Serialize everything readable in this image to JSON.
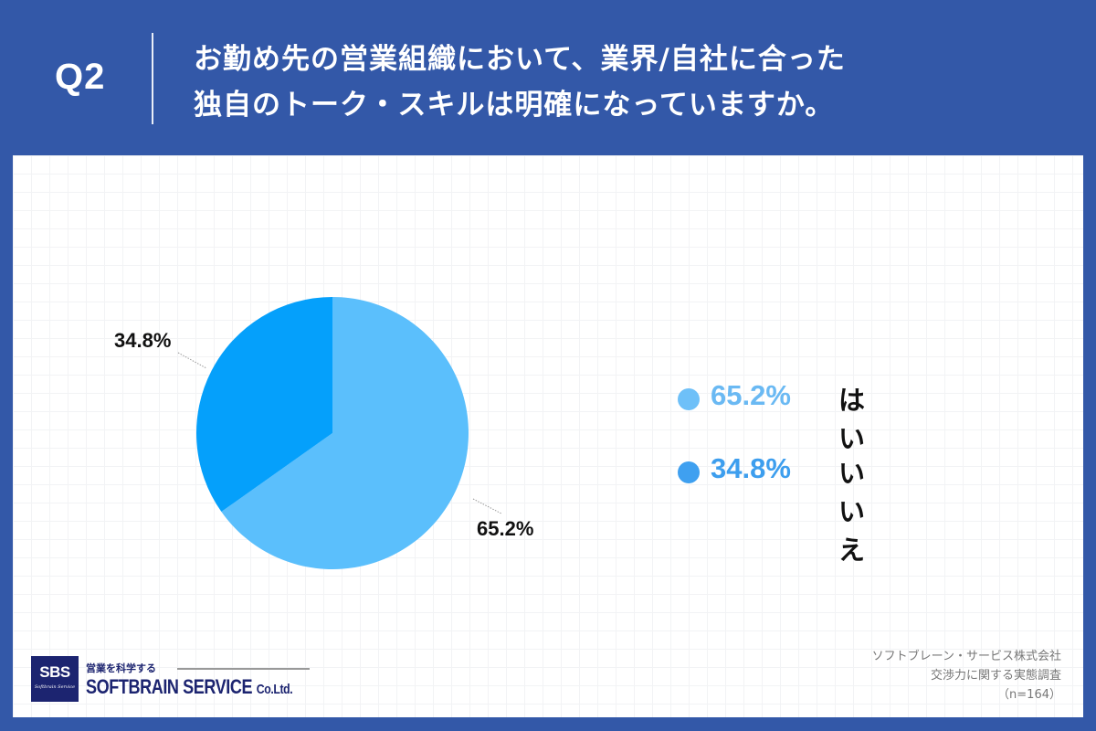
{
  "header": {
    "question_label": "Q2",
    "title_lines": [
      "お勤め先の営業組織において、業界/自社に合った",
      "独自のトーク・スキルは明確になっていますか。"
    ]
  },
  "chart_data": {
    "type": "pie",
    "title": "お勤め先の営業組織において、業界/自社に合った独自のトーク・スキルは明確になっていますか。",
    "categories": [
      "はい",
      "いいえ"
    ],
    "values": [
      65.2,
      34.8
    ],
    "unit": "%",
    "colors": [
      "#5bbffc",
      "#05a0fb"
    ],
    "data_labels": [
      "65.2%",
      "34.8%"
    ],
    "legend_position": "right",
    "sample_size": "n=164"
  },
  "pie": {
    "labels": {
      "yes": "65.2%",
      "no": "34.8%"
    }
  },
  "legend": {
    "items": [
      {
        "pct": "65.2%",
        "label": "はい",
        "dot_color": "#6ec0f8",
        "text_color": "#6ab9f3"
      },
      {
        "pct": "34.8%",
        "label": "いいえ",
        "dot_color": "#3fa0f0",
        "text_color": "#3d9eee"
      }
    ]
  },
  "logo": {
    "box_main": "SBS",
    "box_sub": "Softbrain Service",
    "tagline": "営業を科学する",
    "name": "SOFTBRAIN  SERVICE",
    "name_suffix": "Co.Ltd."
  },
  "source": {
    "lines": [
      "ソフトブレーン・サービス株式会社",
      "交渉力に関する実態調査",
      "（n=164）"
    ]
  },
  "colors": {
    "background": "#3358a8",
    "card": "#ffffff",
    "slice_yes": "#5bbffc",
    "slice_no": "#05a0fb"
  }
}
